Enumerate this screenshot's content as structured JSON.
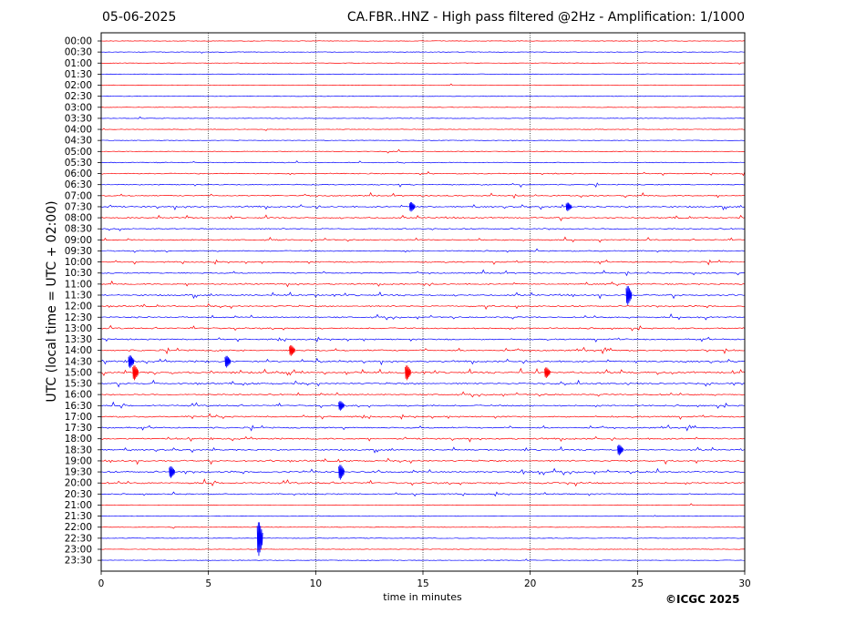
{
  "header": {
    "date": "05-06-2025",
    "title": "CA.FBR..HNZ - High pass filtered @2Hz - Amplification: 1/1000"
  },
  "footer": {
    "copyright": "©ICGC 2025"
  },
  "chart_data": {
    "type": "line",
    "title": "CA.FBR..HNZ - High pass filtered @2Hz - Amplification: 1/1000",
    "xlabel": "time in minutes",
    "ylabel": "UTC (local time = UTC + 02:00)",
    "xlim": [
      0,
      30
    ],
    "xticks": [
      0,
      5,
      10,
      15,
      20,
      25,
      30
    ],
    "grid": "vertical dotted lines at 5, 10, 15, 20, 25",
    "colors": {
      "red": "#ff0000",
      "blue": "#0000ff"
    },
    "rows": [
      {
        "label": "00:00",
        "color": "red",
        "activity": 0.02
      },
      {
        "label": "00:30",
        "color": "blue",
        "activity": 0.02
      },
      {
        "label": "01:00",
        "color": "red",
        "activity": 0.02
      },
      {
        "label": "01:30",
        "color": "blue",
        "activity": 0.02
      },
      {
        "label": "02:00",
        "color": "red",
        "activity": 0.02
      },
      {
        "label": "02:30",
        "color": "blue",
        "activity": 0.02
      },
      {
        "label": "03:00",
        "color": "red",
        "activity": 0.02
      },
      {
        "label": "03:30",
        "color": "blue",
        "activity": 0.02
      },
      {
        "label": "04:00",
        "color": "red",
        "activity": 0.03
      },
      {
        "label": "04:30",
        "color": "blue",
        "activity": 0.03
      },
      {
        "label": "05:00",
        "color": "red",
        "activity": 0.15
      },
      {
        "label": "05:30",
        "color": "blue",
        "activity": 0.2
      },
      {
        "label": "06:00",
        "color": "red",
        "activity": 0.3
      },
      {
        "label": "06:30",
        "color": "blue",
        "activity": 0.3
      },
      {
        "label": "07:00",
        "color": "red",
        "activity": 0.4
      },
      {
        "label": "07:30",
        "color": "blue",
        "activity": 0.6
      },
      {
        "label": "08:00",
        "color": "red",
        "activity": 0.5
      },
      {
        "label": "08:30",
        "color": "blue",
        "activity": 0.4
      },
      {
        "label": "09:00",
        "color": "red",
        "activity": 0.4
      },
      {
        "label": "09:30",
        "color": "blue",
        "activity": 0.4
      },
      {
        "label": "10:00",
        "color": "red",
        "activity": 0.45
      },
      {
        "label": "10:30",
        "color": "blue",
        "activity": 0.45
      },
      {
        "label": "11:00",
        "color": "red",
        "activity": 0.45
      },
      {
        "label": "11:30",
        "color": "blue",
        "activity": 0.6
      },
      {
        "label": "12:00",
        "color": "red",
        "activity": 0.55
      },
      {
        "label": "12:30",
        "color": "blue",
        "activity": 0.5
      },
      {
        "label": "13:00",
        "color": "red",
        "activity": 0.55
      },
      {
        "label": "13:30",
        "color": "blue",
        "activity": 0.5
      },
      {
        "label": "14:00",
        "color": "red",
        "activity": 0.65
      },
      {
        "label": "14:30",
        "color": "blue",
        "activity": 0.7
      },
      {
        "label": "15:00",
        "color": "red",
        "activity": 0.8
      },
      {
        "label": "15:30",
        "color": "blue",
        "activity": 0.65
      },
      {
        "label": "16:00",
        "color": "red",
        "activity": 0.5
      },
      {
        "label": "16:30",
        "color": "blue",
        "activity": 0.6
      },
      {
        "label": "17:00",
        "color": "red",
        "activity": 0.55
      },
      {
        "label": "17:30",
        "color": "blue",
        "activity": 0.55
      },
      {
        "label": "18:00",
        "color": "red",
        "activity": 0.6
      },
      {
        "label": "18:30",
        "color": "blue",
        "activity": 0.55
      },
      {
        "label": "19:00",
        "color": "red",
        "activity": 0.6
      },
      {
        "label": "19:30",
        "color": "blue",
        "activity": 0.75
      },
      {
        "label": "20:00",
        "color": "red",
        "activity": 0.7
      },
      {
        "label": "20:30",
        "color": "blue",
        "activity": 0.4
      },
      {
        "label": "21:00",
        "color": "red",
        "activity": 0.02
      },
      {
        "label": "21:30",
        "color": "blue",
        "activity": 0.02
      },
      {
        "label": "22:00",
        "color": "red",
        "activity": 0.03
      },
      {
        "label": "22:30",
        "color": "blue",
        "activity": 0.02
      },
      {
        "label": "23:00",
        "color": "red",
        "activity": 0.02
      },
      {
        "label": "23:30",
        "color": "blue",
        "activity": 0.02
      }
    ],
    "events": [
      {
        "row": "07:30",
        "minute": 14.5,
        "amplitude": 0.45
      },
      {
        "row": "07:30",
        "minute": 21.8,
        "amplitude": 0.4
      },
      {
        "row": "11:30",
        "minute": 24.6,
        "amplitude": 0.9
      },
      {
        "row": "14:00",
        "minute": 8.9,
        "amplitude": 0.5
      },
      {
        "row": "14:30",
        "minute": 1.4,
        "amplitude": 0.6
      },
      {
        "row": "14:30",
        "minute": 5.9,
        "amplitude": 0.55
      },
      {
        "row": "15:00",
        "minute": 1.6,
        "amplitude": 0.7
      },
      {
        "row": "15:00",
        "minute": 14.3,
        "amplitude": 0.7
      },
      {
        "row": "15:00",
        "minute": 20.8,
        "amplitude": 0.5
      },
      {
        "row": "16:30",
        "minute": 11.2,
        "amplitude": 0.45
      },
      {
        "row": "18:30",
        "minute": 24.2,
        "amplitude": 0.5
      },
      {
        "row": "19:30",
        "minute": 3.3,
        "amplitude": 0.55
      },
      {
        "row": "19:30",
        "minute": 11.2,
        "amplitude": 0.7
      },
      {
        "row": "22:30",
        "minute": 7.4,
        "amplitude": 1.6
      }
    ]
  }
}
